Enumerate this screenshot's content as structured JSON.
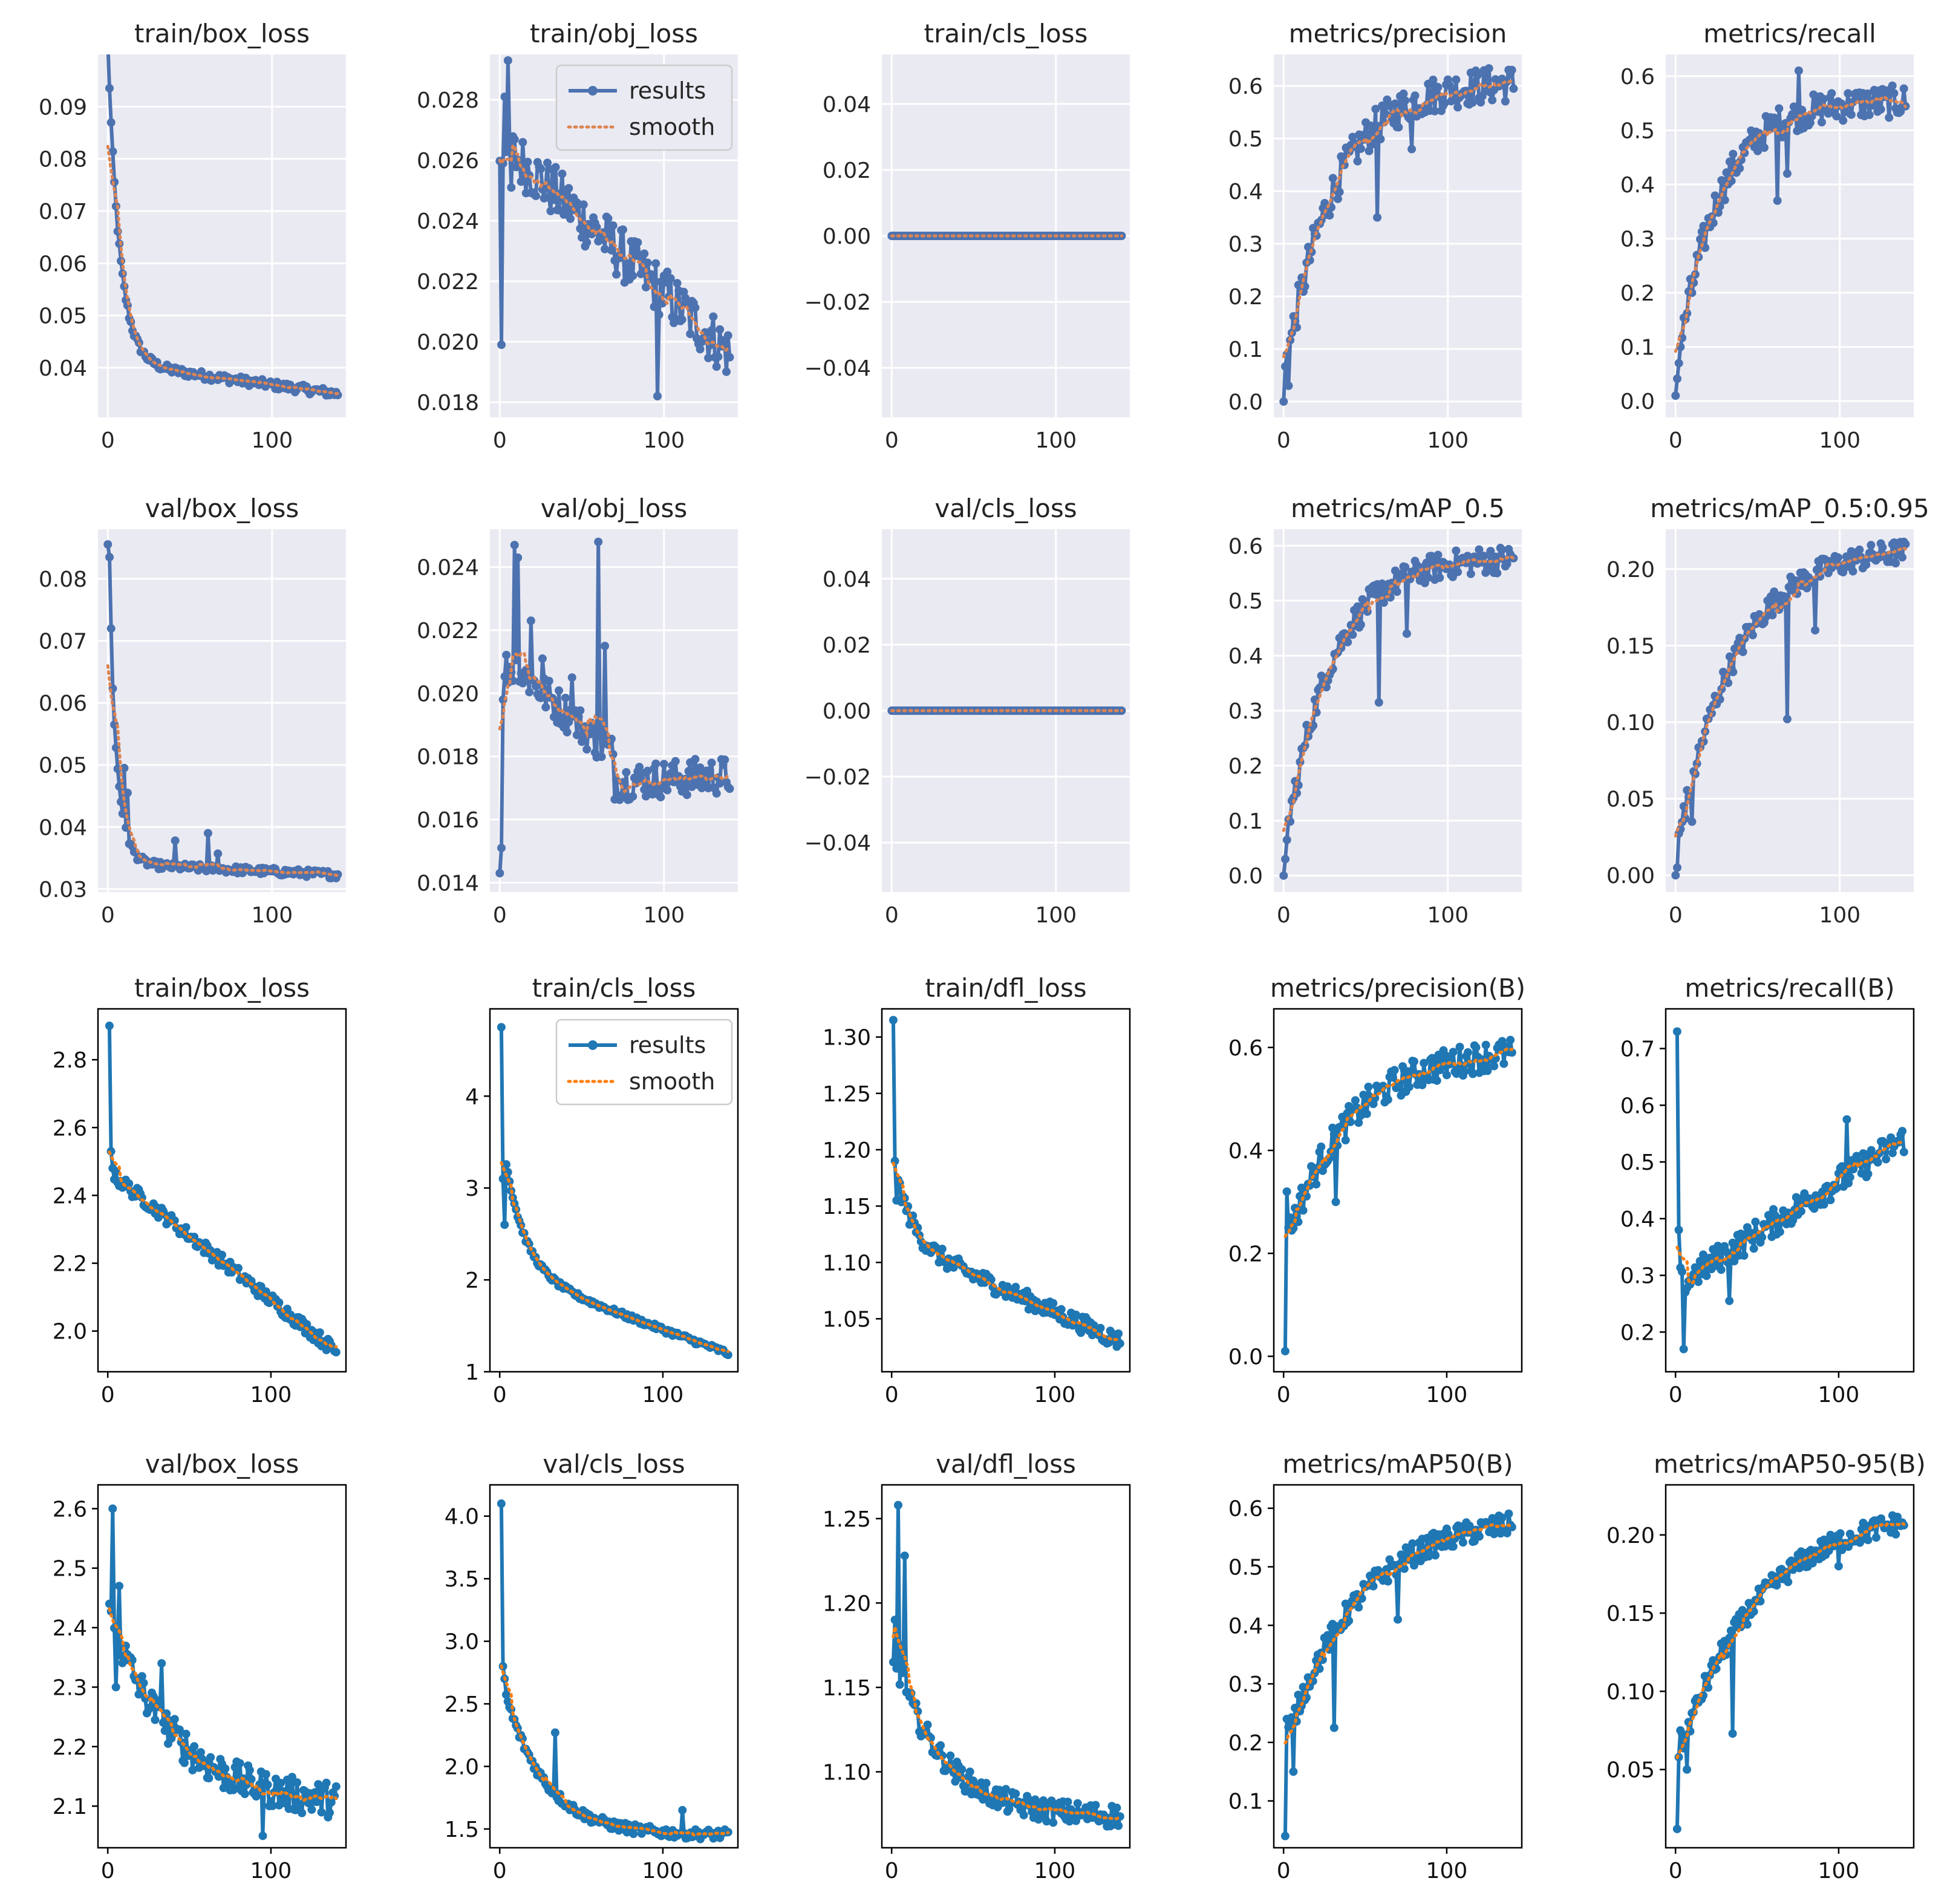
{
  "figure": {
    "description_note": "Grid of 20 training-metric subplots (two YOLO result sets)"
  },
  "legend": {
    "results_label": "results",
    "smooth_label": "smooth"
  },
  "styles": {
    "seaborn": {
      "bg": "#EAEAF2",
      "grid": "#FFFFFF",
      "line": "#4C72B0",
      "smooth": "#DD8452"
    },
    "classic": {
      "bg": "#FFFFFF",
      "line": "#1F77B4",
      "smooth": "#FF7F0E"
    }
  },
  "chart_data": [
    {
      "type": "line",
      "title": "train/box_loss",
      "style": "seaborn",
      "xlim": [
        -6,
        145
      ],
      "ylim": [
        0.0305,
        0.1
      ],
      "xticks": [
        0,
        100
      ],
      "yticks": [
        0.04,
        0.05,
        0.06,
        0.07,
        0.08,
        0.09
      ],
      "ytick_labels": [
        "0.04",
        "0.05",
        "0.06",
        "0.07",
        "0.08",
        "0.09"
      ],
      "series": {
        "x_start": 0,
        "x_end": 140,
        "kind": "exp",
        "y0": 0.096,
        "y1": 0.035,
        "tau": 7,
        "amp": 0.0008,
        "spikes": []
      }
    },
    {
      "type": "line",
      "title": "train/obj_loss",
      "style": "seaborn",
      "legend": true,
      "xlim": [
        -6,
        145
      ],
      "ylim": [
        0.0175,
        0.0295
      ],
      "xticks": [
        0,
        100
      ],
      "yticks": [
        0.018,
        0.02,
        0.022,
        0.024,
        0.026,
        0.028
      ],
      "ytick_labels": [
        "0.018",
        "0.020",
        "0.022",
        "0.024",
        "0.026",
        "0.028"
      ],
      "series": {
        "x_start": 0,
        "x_end": 140,
        "kind": "objloss",
        "y0": 0.024,
        "y1": 0.0195,
        "amp": 0.0009,
        "spikes": [
          [
            1,
            0.0199
          ],
          [
            3,
            0.0281
          ],
          [
            5,
            0.0293
          ],
          [
            7,
            0.0251
          ],
          [
            96,
            0.0182
          ]
        ]
      }
    },
    {
      "type": "line",
      "title": "train/cls_loss",
      "style": "seaborn",
      "xlim": [
        -6,
        145
      ],
      "ylim": [
        -0.055,
        0.055
      ],
      "xticks": [
        0,
        100
      ],
      "yticks": [
        -0.04,
        -0.02,
        0.0,
        0.02,
        0.04
      ],
      "ytick_labels": [
        "−0.04",
        "−0.02",
        "0.00",
        "0.02",
        "0.04"
      ],
      "series": {
        "x_start": 0,
        "x_end": 140,
        "kind": "flat",
        "y0": 0.0,
        "y1": 0.0,
        "amp": 0,
        "spikes": []
      }
    },
    {
      "type": "line",
      "title": "metrics/precision",
      "style": "seaborn",
      "xlim": [
        -6,
        145
      ],
      "ylim": [
        -0.03,
        0.66
      ],
      "xticks": [
        0,
        100
      ],
      "yticks": [
        0.0,
        0.1,
        0.2,
        0.3,
        0.4,
        0.5,
        0.6
      ],
      "ytick_labels": [
        "0.0",
        "0.1",
        "0.2",
        "0.3",
        "0.4",
        "0.5",
        "0.6"
      ],
      "series": {
        "x_start": 0,
        "x_end": 140,
        "kind": "rise",
        "y0": 0.0,
        "y1": 0.61,
        "tau": 30,
        "amp": 0.035,
        "spikes": [
          [
            0,
            0.0
          ],
          [
            2,
            0.09
          ],
          [
            3,
            0.03
          ],
          [
            57,
            0.35
          ],
          [
            78,
            0.48
          ]
        ]
      }
    },
    {
      "type": "line",
      "title": "metrics/recall",
      "style": "seaborn",
      "xlim": [
        -6,
        145
      ],
      "ylim": [
        -0.03,
        0.64
      ],
      "xticks": [
        0,
        100
      ],
      "yticks": [
        0.0,
        0.1,
        0.2,
        0.3,
        0.4,
        0.5,
        0.6
      ],
      "ytick_labels": [
        "0.0",
        "0.1",
        "0.2",
        "0.3",
        "0.4",
        "0.5",
        "0.6"
      ],
      "series": {
        "x_start": 0,
        "x_end": 140,
        "kind": "rise",
        "y0": 0.0,
        "y1": 0.555,
        "tau": 25,
        "amp": 0.03,
        "spikes": [
          [
            0,
            0.01
          ],
          [
            2,
            0.07
          ],
          [
            3,
            0.1
          ],
          [
            10,
            0.2
          ],
          [
            62,
            0.37
          ],
          [
            68,
            0.42
          ],
          [
            75,
            0.61
          ]
        ]
      }
    },
    {
      "type": "line",
      "title": "val/box_loss",
      "style": "seaborn",
      "xlim": [
        -6,
        145
      ],
      "ylim": [
        0.0295,
        0.088
      ],
      "xticks": [
        0,
        100
      ],
      "yticks": [
        0.03,
        0.04,
        0.05,
        0.06,
        0.07,
        0.08
      ],
      "ytick_labels": [
        "0.03",
        "0.04",
        "0.05",
        "0.06",
        "0.07",
        "0.08"
      ],
      "series": {
        "x_start": 0,
        "x_end": 140,
        "kind": "exp",
        "y0": 0.0835,
        "y1": 0.0323,
        "tau": 5,
        "amp": 0.0006,
        "spikes": [
          [
            1,
            0.0835
          ],
          [
            2,
            0.072
          ],
          [
            4,
            0.0565
          ],
          [
            10,
            0.0495
          ],
          [
            12,
            0.0455
          ],
          [
            41,
            0.0378
          ],
          [
            61,
            0.039
          ],
          [
            67,
            0.0357
          ]
        ]
      }
    },
    {
      "type": "line",
      "title": "val/obj_loss",
      "style": "seaborn",
      "xlim": [
        -6,
        145
      ],
      "ylim": [
        0.0137,
        0.0252
      ],
      "xticks": [
        0,
        100
      ],
      "yticks": [
        0.014,
        0.016,
        0.018,
        0.02,
        0.022,
        0.024
      ],
      "ytick_labels": [
        "0.014",
        "0.016",
        "0.018",
        "0.020",
        "0.022",
        "0.024"
      ],
      "series": {
        "x_start": 0,
        "x_end": 140,
        "kind": "valobj",
        "y0": 0.0205,
        "y1": 0.0173,
        "amp": 0.0006,
        "spikes": [
          [
            0,
            0.0143
          ],
          [
            1,
            0.0151
          ],
          [
            2,
            0.0198
          ],
          [
            9,
            0.0247
          ],
          [
            11,
            0.0243
          ],
          [
            19,
            0.0223
          ],
          [
            26,
            0.0211
          ],
          [
            44,
            0.0205
          ],
          [
            60,
            0.0248
          ],
          [
            64,
            0.0215
          ]
        ]
      }
    },
    {
      "type": "line",
      "title": "val/cls_loss",
      "style": "seaborn",
      "xlim": [
        -6,
        145
      ],
      "ylim": [
        -0.055,
        0.055
      ],
      "xticks": [
        0,
        100
      ],
      "yticks": [
        -0.04,
        -0.02,
        0.0,
        0.02,
        0.04
      ],
      "ytick_labels": [
        "−0.04",
        "−0.02",
        "0.00",
        "0.02",
        "0.04"
      ],
      "series": {
        "x_start": 0,
        "x_end": 140,
        "kind": "flat",
        "y0": 0.0,
        "y1": 0.0,
        "amp": 0,
        "spikes": []
      }
    },
    {
      "type": "line",
      "title": "metrics/mAP_0.5",
      "style": "seaborn",
      "xlim": [
        -6,
        145
      ],
      "ylim": [
        -0.03,
        0.63
      ],
      "xticks": [
        0,
        100
      ],
      "yticks": [
        0.0,
        0.1,
        0.2,
        0.3,
        0.4,
        0.5,
        0.6
      ],
      "ytick_labels": [
        "0.0",
        "0.1",
        "0.2",
        "0.3",
        "0.4",
        "0.5",
        "0.6"
      ],
      "series": {
        "x_start": 0,
        "x_end": 140,
        "kind": "rise",
        "y0": 0.0,
        "y1": 0.58,
        "tau": 28,
        "amp": 0.025,
        "spikes": [
          [
            0,
            0.0
          ],
          [
            1,
            0.03
          ],
          [
            2,
            0.065
          ],
          [
            8,
            0.15
          ],
          [
            58,
            0.315
          ],
          [
            75,
            0.44
          ]
        ]
      }
    },
    {
      "type": "line",
      "title": "metrics/mAP_0.5:0.95",
      "style": "seaborn",
      "xlim": [
        -6,
        145
      ],
      "ylim": [
        -0.011,
        0.226
      ],
      "xticks": [
        0,
        100
      ],
      "yticks": [
        0.0,
        0.05,
        0.1,
        0.15,
        0.2
      ],
      "ytick_labels": [
        "0.00",
        "0.05",
        "0.10",
        "0.15",
        "0.20"
      ],
      "series": {
        "x_start": 0,
        "x_end": 140,
        "kind": "rise",
        "y0": 0.0,
        "y1": 0.215,
        "tau": 35,
        "amp": 0.008,
        "spikes": [
          [
            0,
            0.0
          ],
          [
            1,
            0.005
          ],
          [
            5,
            0.045
          ],
          [
            10,
            0.035
          ],
          [
            68,
            0.102
          ],
          [
            85,
            0.16
          ]
        ]
      }
    },
    {
      "type": "line",
      "title": "train/box_loss",
      "style": "classic",
      "xlim": [
        -6,
        146
      ],
      "ylim": [
        1.88,
        2.95
      ],
      "xticks": [
        0,
        100
      ],
      "yticks": [
        2.0,
        2.2,
        2.4,
        2.6,
        2.8
      ],
      "ytick_labels": [
        "2.0",
        "2.2",
        "2.4",
        "2.6",
        "2.8"
      ],
      "series": {
        "x_start": 1,
        "x_end": 140,
        "kind": "decay",
        "y0": 2.9,
        "y1": 1.92,
        "tau": 3,
        "amp": 0.02,
        "spikes": [
          [
            1,
            2.9
          ],
          [
            2,
            2.53
          ],
          [
            3,
            2.48
          ]
        ]
      }
    },
    {
      "type": "line",
      "title": "train/cls_loss",
      "style": "classic",
      "legend": true,
      "xlim": [
        -6,
        146
      ],
      "ylim": [
        1.0,
        4.95
      ],
      "xticks": [
        0,
        100
      ],
      "yticks": [
        1,
        2,
        3,
        4
      ],
      "ytick_labels": [
        "1",
        "2",
        "3",
        "4"
      ],
      "series": {
        "x_start": 1,
        "x_end": 140,
        "kind": "cls",
        "y0": 4.75,
        "y1": 1.2,
        "amp": 0.03,
        "spikes": [
          [
            1,
            4.75
          ],
          [
            2,
            3.1
          ],
          [
            3,
            2.6
          ]
        ]
      }
    },
    {
      "type": "line",
      "title": "train/dfl_loss",
      "style": "classic",
      "xlim": [
        -6,
        146
      ],
      "ylim": [
        1.003,
        1.325
      ],
      "xticks": [
        0,
        100
      ],
      "yticks": [
        1.05,
        1.1,
        1.15,
        1.2,
        1.25,
        1.3
      ],
      "ytick_labels": [
        "1.05",
        "1.10",
        "1.15",
        "1.20",
        "1.25",
        "1.30"
      ],
      "series": {
        "x_start": 1,
        "x_end": 140,
        "kind": "dfl",
        "y0": 1.31,
        "y1": 1.03,
        "amp": 0.008,
        "spikes": [
          [
            1,
            1.315
          ],
          [
            2,
            1.19
          ],
          [
            3,
            1.155
          ]
        ]
      }
    },
    {
      "type": "line",
      "title": "metrics/precision(B)",
      "style": "classic",
      "xlim": [
        -6,
        146
      ],
      "ylim": [
        -0.03,
        0.675
      ],
      "xticks": [
        0,
        100
      ],
      "yticks": [
        0.0,
        0.2,
        0.4,
        0.6
      ],
      "ytick_labels": [
        "0.0",
        "0.2",
        "0.4",
        "0.6"
      ],
      "series": {
        "x_start": 1,
        "x_end": 140,
        "kind": "rise",
        "y0": 0.2,
        "y1": 0.6,
        "tau": 40,
        "amp": 0.03,
        "spikes": [
          [
            1,
            0.01
          ],
          [
            2,
            0.32
          ],
          [
            3,
            0.25
          ],
          [
            32,
            0.3
          ]
        ]
      }
    },
    {
      "type": "line",
      "title": "metrics/recall(B)",
      "style": "classic",
      "xlim": [
        -6,
        146
      ],
      "ylim": [
        0.13,
        0.77
      ],
      "xticks": [
        0,
        100
      ],
      "yticks": [
        0.2,
        0.3,
        0.4,
        0.5,
        0.6,
        0.7
      ],
      "ytick_labels": [
        "0.2",
        "0.3",
        "0.4",
        "0.5",
        "0.6",
        "0.7"
      ],
      "series": {
        "x_start": 1,
        "x_end": 140,
        "kind": "recallB",
        "y0": 0.28,
        "y1": 0.54,
        "amp": 0.025,
        "spikes": [
          [
            1,
            0.73
          ],
          [
            2,
            0.38
          ],
          [
            5,
            0.17
          ],
          [
            33,
            0.255
          ],
          [
            105,
            0.575
          ]
        ]
      }
    },
    {
      "type": "line",
      "title": "val/box_loss",
      "style": "classic",
      "xlim": [
        -6,
        146
      ],
      "ylim": [
        2.03,
        2.64
      ],
      "xticks": [
        0,
        100
      ],
      "yticks": [
        2.1,
        2.2,
        2.3,
        2.4,
        2.5,
        2.6
      ],
      "ytick_labels": [
        "2.1",
        "2.2",
        "2.3",
        "2.4",
        "2.5",
        "2.6"
      ],
      "series": {
        "x_start": 1,
        "x_end": 140,
        "kind": "decay",
        "y0": 2.42,
        "y1": 2.1,
        "tau": 40,
        "amp": 0.03,
        "spikes": [
          [
            1,
            2.44
          ],
          [
            3,
            2.6
          ],
          [
            5,
            2.3
          ],
          [
            7,
            2.47
          ],
          [
            33,
            2.34
          ],
          [
            95,
            2.05
          ]
        ]
      }
    },
    {
      "type": "line",
      "title": "val/cls_loss",
      "style": "classic",
      "xlim": [
        -6,
        146
      ],
      "ylim": [
        1.35,
        4.25
      ],
      "xticks": [
        0,
        100
      ],
      "yticks": [
        1.5,
        2.0,
        2.5,
        3.0,
        3.5,
        4.0
      ],
      "ytick_labels": [
        "1.5",
        "2.0",
        "2.5",
        "3.0",
        "3.5",
        "4.0"
      ],
      "series": {
        "x_start": 1,
        "x_end": 140,
        "kind": "decay2",
        "y0": 2.7,
        "y1": 1.45,
        "tau": 25,
        "amp": 0.04,
        "spikes": [
          [
            1,
            4.1
          ],
          [
            2,
            2.8
          ],
          [
            3,
            2.7
          ],
          [
            34,
            2.27
          ],
          [
            112,
            1.65
          ]
        ]
      }
    },
    {
      "type": "line",
      "title": "val/dfl_loss",
      "style": "classic",
      "xlim": [
        -6,
        146
      ],
      "ylim": [
        1.055,
        1.27
      ],
      "xticks": [
        0,
        100
      ],
      "yticks": [
        1.1,
        1.15,
        1.2,
        1.25
      ],
      "ytick_labels": [
        "1.10",
        "1.15",
        "1.20",
        "1.25"
      ],
      "series": {
        "x_start": 1,
        "x_end": 140,
        "kind": "decay2",
        "y0": 1.17,
        "y1": 1.073,
        "tau": 30,
        "amp": 0.007,
        "spikes": [
          [
            1,
            1.165
          ],
          [
            2,
            1.19
          ],
          [
            4,
            1.258
          ],
          [
            6,
            1.175
          ],
          [
            8,
            1.228
          ]
        ]
      }
    },
    {
      "type": "line",
      "title": "metrics/mAP50(B)",
      "style": "classic",
      "xlim": [
        -6,
        146
      ],
      "ylim": [
        0.02,
        0.64
      ],
      "xticks": [
        0,
        100
      ],
      "yticks": [
        0.1,
        0.2,
        0.3,
        0.4,
        0.5,
        0.6
      ],
      "ytick_labels": [
        "0.1",
        "0.2",
        "0.3",
        "0.4",
        "0.5",
        "0.6"
      ],
      "series": {
        "x_start": 1,
        "x_end": 140,
        "kind": "rise",
        "y0": 0.18,
        "y1": 0.59,
        "tau": 45,
        "amp": 0.02,
        "spikes": [
          [
            1,
            0.04
          ],
          [
            2,
            0.24
          ],
          [
            6,
            0.15
          ],
          [
            31,
            0.225
          ],
          [
            70,
            0.41
          ]
        ]
      }
    },
    {
      "type": "line",
      "title": "metrics/mAP50-95(B)",
      "style": "classic",
      "xlim": [
        -6,
        146
      ],
      "ylim": [
        0.0,
        0.232
      ],
      "xticks": [
        0,
        100
      ],
      "yticks": [
        0.05,
        0.1,
        0.15,
        0.2
      ],
      "ytick_labels": [
        "0.05",
        "0.10",
        "0.15",
        "0.20"
      ],
      "series": {
        "x_start": 1,
        "x_end": 140,
        "kind": "rise",
        "y0": 0.05,
        "y1": 0.218,
        "tau": 50,
        "amp": 0.007,
        "spikes": [
          [
            1,
            0.012
          ],
          [
            3,
            0.075
          ],
          [
            7,
            0.05
          ],
          [
            35,
            0.073
          ],
          [
            100,
            0.18
          ]
        ]
      }
    }
  ]
}
